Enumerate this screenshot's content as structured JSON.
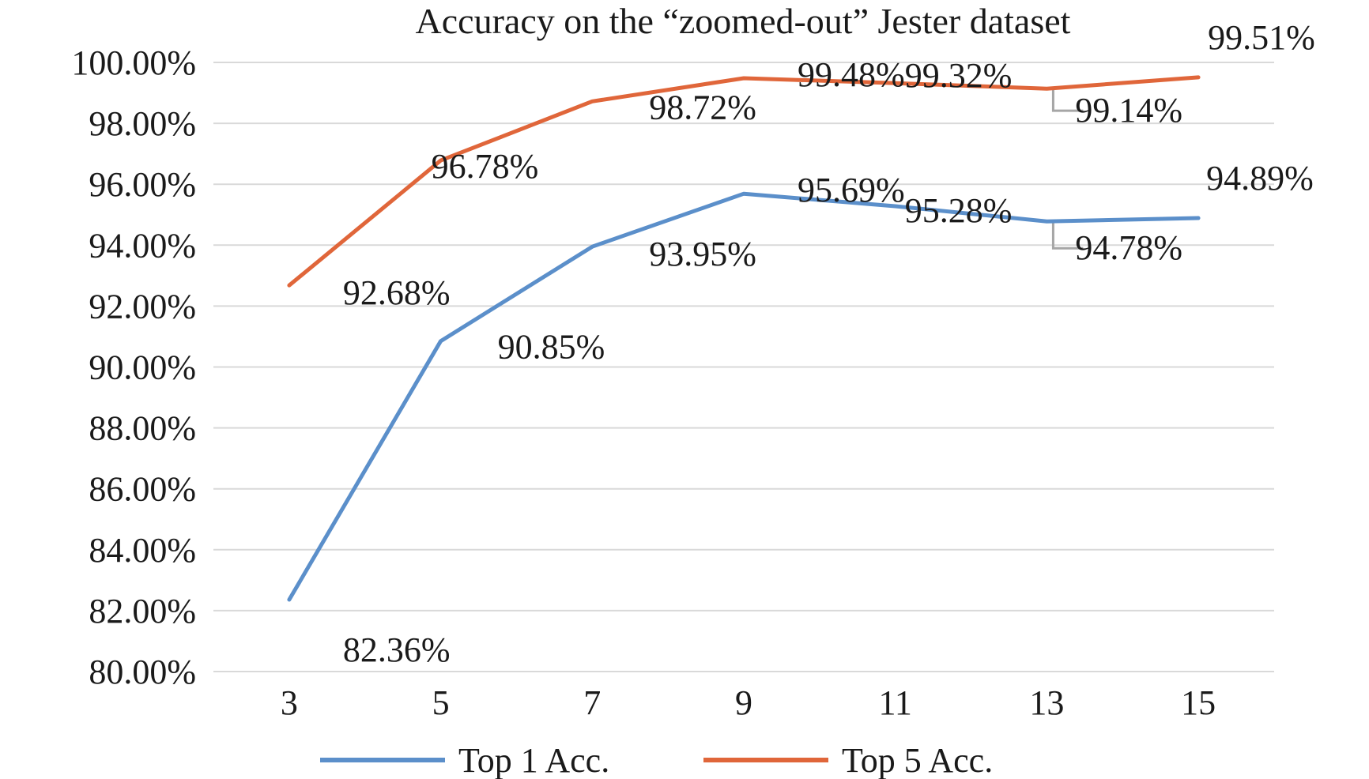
{
  "chart_data": {
    "type": "line",
    "title": "Accuracy on the “zoomed-out” Jester dataset",
    "xlabel": "",
    "ylabel": "",
    "categories": [
      "3",
      "5",
      "7",
      "9",
      "11",
      "13",
      "15"
    ],
    "ylim": [
      80,
      100
    ],
    "ytick_labels": [
      "80.00%",
      "82.00%",
      "84.00%",
      "86.00%",
      "88.00%",
      "90.00%",
      "92.00%",
      "94.00%",
      "96.00%",
      "98.00%",
      "100.00%"
    ],
    "grid": true,
    "legend_position": "bottom",
    "series": [
      {
        "name": "Top 1 Acc.",
        "color": "#5b8fca",
        "values": [
          82.36,
          90.85,
          93.95,
          95.69,
          95.28,
          94.78,
          94.89
        ],
        "labels": [
          "82.36%",
          "90.85%",
          "93.95%",
          "95.69%",
          "95.28%",
          "94.78%",
          "94.89%"
        ]
      },
      {
        "name": "Top 5 Acc.",
        "color": "#e0663a",
        "values": [
          92.68,
          96.78,
          98.72,
          99.48,
          99.32,
          99.14,
          99.51
        ],
        "labels": [
          "92.68%",
          "96.78%",
          "98.72%",
          "99.48%",
          "99.32%",
          "99.14%",
          "99.51%"
        ]
      }
    ]
  }
}
